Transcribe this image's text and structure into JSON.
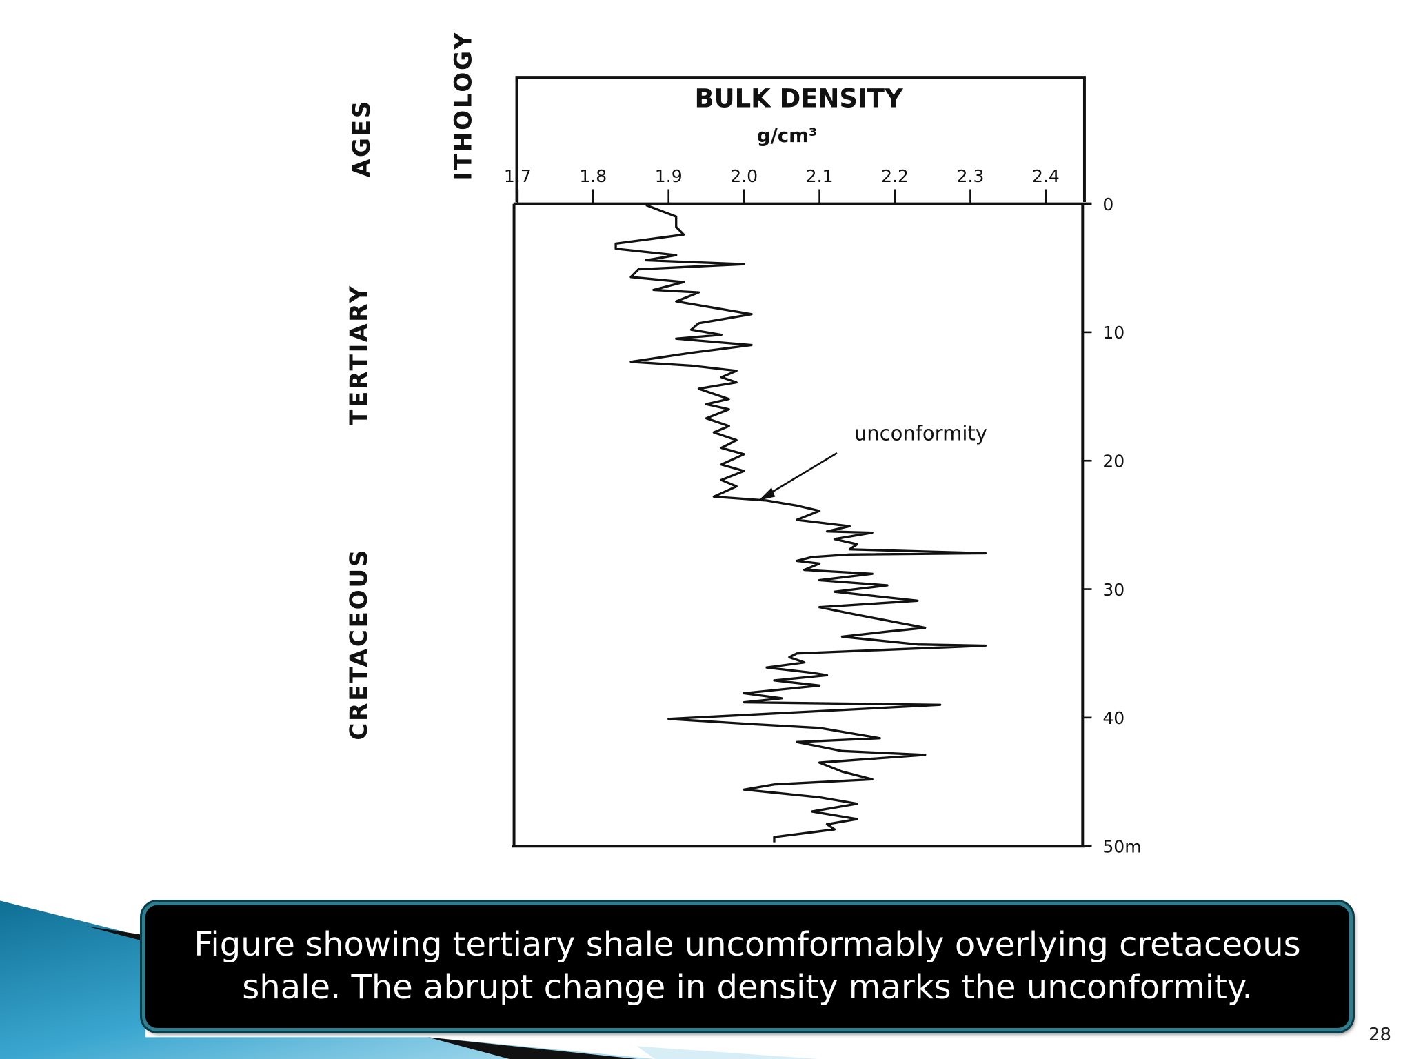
{
  "column_headers": [
    "AGES",
    "ITHOLOGY"
  ],
  "age_labels": [
    "TERTIARY",
    "CRETACEOUS"
  ],
  "chart_data": {
    "type": "line",
    "title": "BULK DENSITY",
    "x_label": "g/cm³",
    "annotation": "unconformity",
    "color": "#111111",
    "xlim": [
      1.7,
      2.45
    ],
    "xticks": [
      1.7,
      1.8,
      1.9,
      {
        "value": 2,
        "label": "2.0"
      },
      2.1,
      2.2,
      2.3,
      2.4
    ],
    "ylim": [
      0,
      50
    ],
    "yticks": [
      0,
      10,
      20,
      30,
      40,
      {
        "value": 50,
        "label": "50m"
      }
    ],
    "y_inverted": true,
    "x": [
      1.87,
      1.91,
      1.91,
      1.92,
      1.83,
      1.83,
      1.91,
      1.87,
      2.0,
      1.86,
      1.85,
      1.92,
      1.88,
      1.94,
      1.91,
      2.01,
      1.94,
      1.93,
      1.97,
      1.91,
      2.01,
      1.93,
      1.85,
      1.93,
      1.99,
      1.97,
      1.99,
      1.94,
      1.98,
      1.95,
      1.98,
      1.95,
      1.98,
      1.96,
      1.99,
      1.97,
      2.0,
      1.97,
      2.0,
      1.97,
      1.99,
      1.96,
      2.03,
      2.07,
      2.1,
      2.07,
      2.14,
      2.11,
      2.17,
      2.12,
      2.15,
      2.14,
      2.32,
      2.14,
      2.09,
      2.07,
      2.1,
      2.08,
      2.17,
      2.1,
      2.19,
      2.12,
      2.23,
      2.1,
      2.15,
      2.24,
      2.19,
      2.13,
      2.23,
      2.32,
      2.07,
      2.06,
      2.08,
      2.03,
      2.09,
      2.11,
      2.04,
      2.1,
      2.0,
      2.05,
      2.0,
      2.26,
      1.9,
      2.01,
      2.1,
      2.18,
      2.07,
      2.13,
      2.24,
      2.1,
      2.13,
      2.17,
      2.04,
      2.0,
      2.1,
      2.15,
      2.09,
      2.15,
      2.11,
      2.12,
      2.04,
      2.04
    ],
    "values": [
      0.1,
      1.0,
      1.8,
      2.4,
      3.1,
      3.5,
      4.0,
      4.4,
      4.7,
      5.1,
      5.7,
      6.1,
      6.7,
      6.9,
      7.6,
      8.6,
      9.3,
      9.8,
      10.2,
      10.5,
      11.0,
      11.6,
      12.3,
      12.6,
      13.0,
      13.5,
      13.9,
      14.4,
      15.2,
      15.6,
      16.0,
      16.7,
      17.3,
      17.8,
      18.4,
      19.0,
      19.5,
      20.3,
      20.8,
      21.5,
      22.0,
      22.8,
      23.1,
      23.5,
      23.9,
      24.6,
      25.1,
      25.5,
      25.6,
      26.1,
      26.5,
      26.9,
      27.2,
      27.3,
      27.5,
      27.8,
      28.0,
      28.5,
      28.8,
      29.3,
      29.7,
      30.2,
      30.9,
      31.4,
      32.0,
      33.0,
      33.3,
      33.7,
      34.3,
      34.4,
      35.0,
      35.3,
      35.7,
      36.1,
      36.5,
      36.7,
      37.1,
      37.5,
      38.1,
      38.5,
      38.8,
      39.0,
      40.1,
      40.5,
      40.8,
      41.6,
      41.9,
      42.6,
      42.9,
      43.5,
      44.2,
      44.8,
      45.2,
      45.6,
      46.2,
      46.7,
      47.3,
      47.9,
      48.3,
      48.7,
      49.3,
      49.7
    ]
  },
  "caption": {
    "lines": [
      "Figure showing tertiary shale uncomformably overlying cretaceous",
      "shale. The abrupt change in density marks the unconformity."
    ]
  },
  "page_number": "28"
}
